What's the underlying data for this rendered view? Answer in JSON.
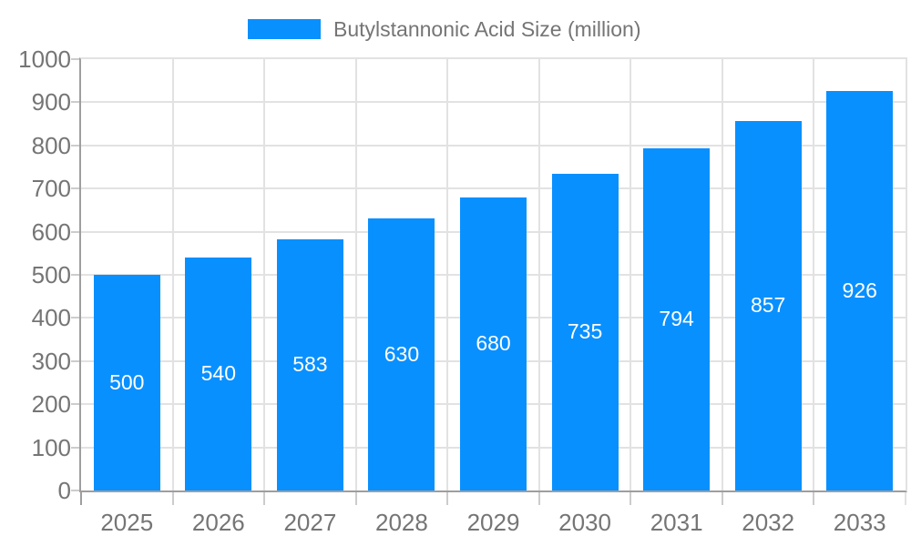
{
  "legend": {
    "label": "Butylstannonic Acid Size (million)"
  },
  "chart_data": {
    "type": "bar",
    "title": "Butylstannonic Acid Size (million)",
    "categories": [
      "2025",
      "2026",
      "2027",
      "2028",
      "2029",
      "2030",
      "2031",
      "2032",
      "2033"
    ],
    "values": [
      500,
      540,
      583,
      630,
      680,
      735,
      794,
      857,
      926
    ],
    "xlabel": "",
    "ylabel": "",
    "ylim": [
      0,
      1000
    ],
    "ytick_step": 100,
    "grid": true,
    "legend_position": "top-center",
    "colors": {
      "bar": "#0990ff",
      "bar_label": "#ffffff",
      "axis_text": "#757575",
      "legend_text": "#757575",
      "gridline": "#e2e2e2",
      "axis_line": "#9e9e9e",
      "tick": "#cccccc",
      "background": "#ffffff"
    }
  }
}
